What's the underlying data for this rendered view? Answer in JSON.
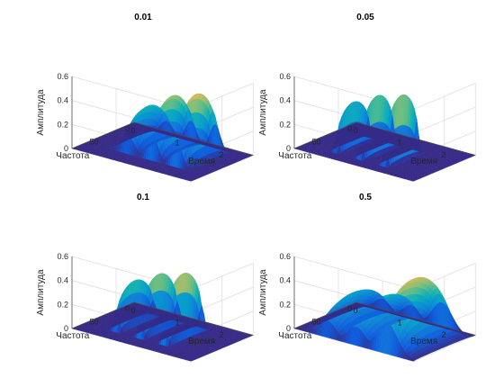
{
  "chart_data": [
    {
      "type": "surface3d",
      "title": "0.01",
      "xlabel": "Время",
      "ylabel": "Частота",
      "zlabel": "Амплитуда",
      "x_ticks": [
        0,
        1,
        2
      ],
      "x_tick_labels": [
        "0",
        "1",
        "2"
      ],
      "y_ticks": [
        0,
        50
      ],
      "y_tick_labels": [
        "0",
        "50"
      ],
      "z_ticks": [
        0,
        0.2,
        0.4,
        0.6
      ],
      "z_tick_labels": [
        "0",
        "0.2",
        "0.4",
        "0.6"
      ],
      "xlim": [
        0,
        2.7
      ],
      "ylim": [
        0,
        100
      ],
      "zlim": [
        0,
        0.6
      ],
      "ridge_centers": [
        0.9,
        1.45,
        2.0
      ],
      "ridge_peaks": [
        0.32,
        0.46,
        0.53
      ],
      "ridge_widths": [
        0.3,
        0.26,
        0.24
      ],
      "frequency_band": [
        10,
        75
      ],
      "colormap": "parula",
      "grid": true
    },
    {
      "type": "surface3d",
      "title": "0.05",
      "xlabel": "Время",
      "ylabel": "Частота",
      "zlabel": "Амплитуда",
      "x_ticks": [
        0,
        1,
        2
      ],
      "x_tick_labels": [
        "0",
        "1",
        "2"
      ],
      "y_ticks": [
        0,
        50
      ],
      "y_tick_labels": [
        "0",
        "50"
      ],
      "z_ticks": [
        0,
        0.2,
        0.4,
        0.6
      ],
      "z_tick_labels": [
        "0",
        "0.2",
        "0.4",
        "0.6"
      ],
      "xlim": [
        0,
        2.7
      ],
      "ylim": [
        0,
        100
      ],
      "zlim": [
        0,
        0.6
      ],
      "ridge_centers": [
        0.7,
        1.25,
        1.8
      ],
      "ridge_peaks": [
        0.36,
        0.47,
        0.53
      ],
      "ridge_widths": [
        0.09,
        0.09,
        0.09
      ],
      "frequency_band": [
        28,
        82
      ],
      "colormap": "parula",
      "grid": true
    },
    {
      "type": "surface3d",
      "title": "0.1",
      "xlabel": "Время",
      "ylabel": "Частота",
      "zlabel": "Амплитуда",
      "x_ticks": [
        0,
        1,
        2
      ],
      "x_tick_labels": [
        "0",
        "1",
        "2"
      ],
      "y_ticks": [
        0,
        50
      ],
      "y_tick_labels": [
        "0",
        "50"
      ],
      "z_ticks": [
        0,
        0.2,
        0.4,
        0.6
      ],
      "z_tick_labels": [
        "0",
        "0.2",
        "0.4",
        "0.6"
      ],
      "xlim": [
        0,
        2.7
      ],
      "ylim": [
        0,
        100
      ],
      "zlim": [
        0,
        0.6
      ],
      "ridge_centers": [
        0.7,
        1.25,
        1.8
      ],
      "ridge_peaks": [
        0.36,
        0.47,
        0.53
      ],
      "ridge_widths": [
        0.12,
        0.12,
        0.12
      ],
      "frequency_band": [
        18,
        80
      ],
      "colormap": "parula",
      "grid": true
    },
    {
      "type": "surface3d",
      "title": "0.5",
      "xlabel": "Время",
      "ylabel": "Частота",
      "zlabel": "Амплитуда",
      "x_ticks": [
        0,
        1,
        2
      ],
      "x_tick_labels": [
        "0",
        "1",
        "2"
      ],
      "y_ticks": [
        0,
        50
      ],
      "y_tick_labels": [
        "0",
        "50"
      ],
      "z_ticks": [
        0,
        0.2,
        0.4,
        0.6
      ],
      "z_tick_labels": [
        "0",
        "0.2",
        "0.4",
        "0.6"
      ],
      "xlim": [
        0,
        2.7
      ],
      "ylim": [
        0,
        100
      ],
      "zlim": [
        0,
        0.6
      ],
      "ridge_centers": [
        0.7,
        1.35,
        2.05
      ],
      "ridge_peaks": [
        0.27,
        0.3,
        0.52
      ],
      "ridge_widths": [
        0.4,
        0.42,
        0.48
      ],
      "frequency_band": [
        5,
        100
      ],
      "colormap": "parula",
      "grid": true
    }
  ]
}
